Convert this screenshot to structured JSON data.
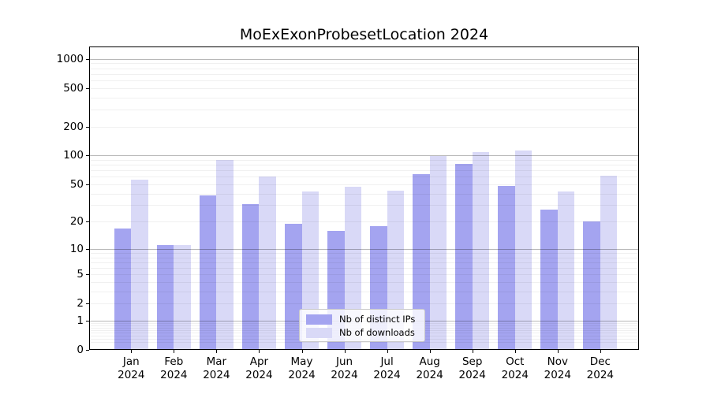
{
  "title": "MoExExonProbesetLocation 2024",
  "legend": {
    "items": [
      {
        "label": "Nb of distinct IPs",
        "color": "#a4a4f0"
      },
      {
        "label": "Nb of downloads",
        "color": "#d9d9f7"
      }
    ]
  },
  "y_axis": {
    "tick_labels": [
      "0",
      "1",
      "2",
      "5",
      "10",
      "20",
      "50",
      "100",
      "200",
      "500",
      "1000"
    ],
    "major_grid_values": [
      1,
      10,
      100,
      1000
    ],
    "minor_grid_steps": [
      2,
      3,
      4,
      5,
      6,
      7,
      8,
      9
    ],
    "scale": "log1p"
  },
  "colors": {
    "distinct_ips": "#a4a4f0",
    "downloads": "#d9d9f7",
    "spine": "#000000"
  },
  "chart_data": {
    "type": "bar",
    "title": "MoExExonProbesetLocation 2024",
    "categories": [
      "Jan 2024",
      "Feb 2024",
      "Mar 2024",
      "Apr 2024",
      "May 2024",
      "Jun 2024",
      "Jul 2024",
      "Aug 2024",
      "Sep 2024",
      "Oct 2024",
      "Nov 2024",
      "Dec 2024"
    ],
    "series": [
      {
        "name": "Nb of distinct IPs",
        "color": "#a4a4f0",
        "values": [
          17,
          11,
          38,
          31,
          19,
          16,
          18,
          64,
          82,
          48,
          27,
          20
        ]
      },
      {
        "name": "Nb of downloads",
        "color": "#d9d9f7",
        "values": [
          56,
          11,
          90,
          60,
          42,
          47,
          43,
          98,
          109,
          113,
          42,
          61
        ]
      }
    ],
    "xlabel": "",
    "ylabel": "",
    "y_ticks": [
      0,
      1,
      2,
      5,
      10,
      20,
      50,
      100,
      200,
      500,
      1000
    ],
    "ylim": [
      0,
      1340
    ],
    "yscale": "log1p",
    "grid": "on",
    "legend_position": "lower center"
  }
}
